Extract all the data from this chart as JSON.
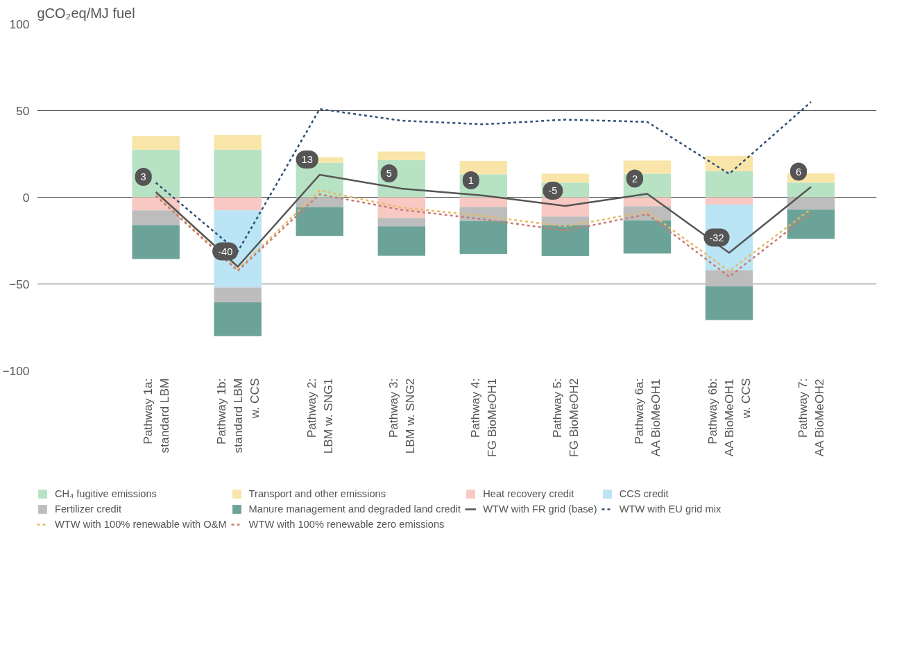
{
  "chart_data": {
    "type": "bar",
    "stacked": true,
    "ylabel": "gCO₂eq/MJ fuel",
    "categories": [
      "Pathway 1a:\nstandard LBM",
      "Pathway 1b:\nstandard LBM\nw. CCS",
      "Pathway 2:\nLBM w. SNG1",
      "Pathway 3:\nLBM w. SNG2",
      "Pathway 4:\nFG BioMeOH1",
      "Pathway 5:\nFG BioMeOH2",
      "Pathway 6a:\nAA BioMeOH1",
      "Pathway 6b:\nAA BioMeOH1\nw. CCS",
      "Pathway 7:\nAA BioMeOH2"
    ],
    "series": [
      {
        "name": "CH₄ fugitive emissions",
        "color": "#b8e2c4",
        "values": [
          27.5,
          27.5,
          19.9,
          21.5,
          13.3,
          8.5,
          13.6,
          15.1,
          8.5
        ]
      },
      {
        "name": "Transport and other emissions",
        "color": "#f9e5a8",
        "values": [
          7.8,
          8.4,
          3.2,
          4.9,
          7.7,
          5.1,
          7.6,
          8.8,
          5.3
        ]
      },
      {
        "name": "Heat recovery credit",
        "color": "#f8c8c3",
        "values": [
          -7.5,
          -7.5,
          null,
          -11.9,
          -5.6,
          -11.1,
          -5.1,
          -4.2,
          null
        ]
      },
      {
        "name": "CCS credit",
        "color": "#bbe4f4",
        "values": [
          null,
          -44.5,
          null,
          null,
          null,
          null,
          null,
          -37.9,
          null
        ]
      },
      {
        "name": "Fertilizer credit",
        "color": "#bdbdbd",
        "values": [
          -8.6,
          -8.6,
          -5.6,
          -4.8,
          -8.0,
          -5.1,
          -8.2,
          -9.2,
          -7.1
        ]
      },
      {
        "name": "Manure management and degraded land credit",
        "color": "#6ca398",
        "values": [
          -19.5,
          -19.5,
          -16.7,
          -17.0,
          -19.1,
          -17.6,
          -19.1,
          -19.5,
          -16.9
        ]
      },
      {
        "type": "line",
        "name": "WTW with FR grid (base)",
        "color": "#555555",
        "line_style": "solid",
        "values": [
          3,
          -40,
          13,
          5,
          1,
          -5,
          2,
          -32,
          6
        ],
        "value_labels": [
          "3",
          "-40",
          "13",
          "5",
          "1",
          "-5",
          "2",
          "-32",
          "6"
        ]
      },
      {
        "type": "line",
        "name": "WTW with EU grid mix",
        "color": "#2e5075",
        "line_style": "dashed",
        "values": [
          8.4,
          -31.3,
          50.9,
          44.2,
          42.1,
          44.8,
          43.5,
          13.5,
          55.0
        ]
      },
      {
        "type": "line",
        "name": "WTW with 100% renewable with O&M",
        "color": "#e8b863",
        "line_style": "dashed",
        "values": [
          1.3,
          -41.7,
          4.0,
          -5.9,
          -10.8,
          -16.8,
          -8.2,
          -42.6,
          -6.8
        ]
      },
      {
        "type": "line",
        "name": "WTW with 100% renewable zero emissions",
        "color": "#c97a73",
        "line_style": "dashed",
        "values": [
          0.8,
          -42.4,
          1.7,
          -7.2,
          -12.7,
          -19.2,
          -9.8,
          -45.8,
          -9.0
        ]
      }
    ],
    "ylim": [
      -100,
      100
    ],
    "yticks": [
      -100,
      -50,
      0,
      50,
      100
    ],
    "grid": "y",
    "legend": "bottom",
    "marker": "none"
  }
}
